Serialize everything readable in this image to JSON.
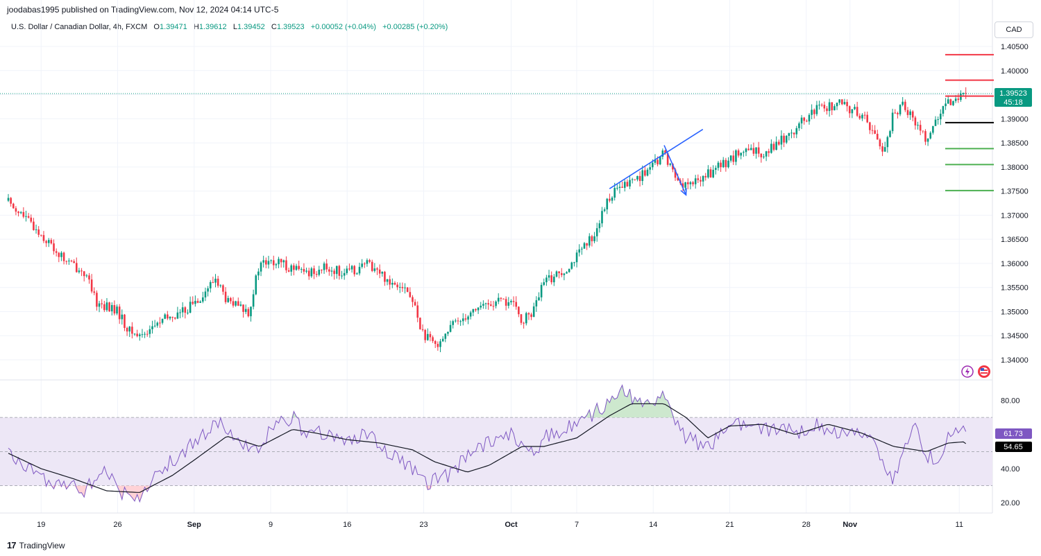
{
  "header": {
    "publisher_line": "joodabas1995 published on TradingView.com, Nov 12, 2024 04:14 UTC-5",
    "symbol": "U.S. Dollar / Canadian Dollar, 4h, FXCM",
    "open_label": "O",
    "open": "1.39471",
    "high_label": "H",
    "high": "1.39612",
    "low_label": "L",
    "low": "1.39452",
    "close_label": "C",
    "close": "1.39523",
    "change": "+0.00052 (+0.04%)",
    "change2": "+0.00285 (+0.20%)",
    "currency_button": "CAD"
  },
  "price_badge": {
    "price": "1.39523",
    "countdown": "45:18"
  },
  "rsi_badges": {
    "rsi": "61.73",
    "rsi_ma": "54.65"
  },
  "footer": {
    "brand": "TradingView",
    "logo_text": "17"
  },
  "colors": {
    "up": "#089981",
    "down": "#f23645",
    "rsi": "#7e57c2",
    "rsi_band": "#ede7f6",
    "trendline": "#2962ff",
    "resistance": "#f23645",
    "support": "#4caf50",
    "pivot": "#000000"
  },
  "chart_data": [
    {
      "type": "candlestick",
      "title": "U.S. Dollar / Canadian Dollar, 4h, FXCM",
      "timeframe": "4h",
      "ylim": [
        1.337,
        1.4075
      ],
      "y_ticks": [
        "1.40500",
        "1.40000",
        "1.39500",
        "1.39000",
        "1.38500",
        "1.38000",
        "1.37500",
        "1.37000",
        "1.36500",
        "1.36000",
        "1.35500",
        "1.35000",
        "1.34500",
        "1.34000"
      ],
      "x_ticks": [
        "19",
        "26",
        "Sep",
        "9",
        "16",
        "23",
        "Oct",
        "7",
        "14",
        "21",
        "28",
        "Nov",
        "11"
      ],
      "close_path": [
        [
          "Aug 16",
          1.373
        ],
        [
          "Aug 19",
          1.366
        ],
        [
          "Aug 21",
          1.361
        ],
        [
          "Aug 23",
          1.358
        ],
        [
          "Aug 24",
          1.352
        ],
        [
          "Aug 26",
          1.35
        ],
        [
          "Aug 27",
          1.346
        ],
        [
          "Aug 28",
          1.345
        ],
        [
          "Aug 30",
          1.348
        ],
        [
          "Sep 1",
          1.35
        ],
        [
          "Sep 3",
          1.354
        ],
        [
          "Sep 4",
          1.357
        ],
        [
          "Sep 5",
          1.352
        ],
        [
          "Sep 7",
          1.35
        ],
        [
          "Sep 8",
          1.36
        ],
        [
          "Sep 10",
          1.36
        ],
        [
          "Sep 12",
          1.358
        ],
        [
          "Sep 14",
          1.359
        ],
        [
          "Sep 16",
          1.358
        ],
        [
          "Sep 18",
          1.36
        ],
        [
          "Sep 20",
          1.356
        ],
        [
          "Sep 21",
          1.356
        ],
        [
          "Sep 22",
          1.352
        ],
        [
          "Sep 23",
          1.345
        ],
        [
          "Sep 24",
          1.343
        ],
        [
          "Sep 26",
          1.348
        ],
        [
          "Sep 28",
          1.351
        ],
        [
          "Sep 30",
          1.352
        ],
        [
          "Oct 1",
          1.352
        ],
        [
          "Oct 2",
          1.348
        ],
        [
          "Oct 3",
          1.35
        ],
        [
          "Oct 4",
          1.356
        ],
        [
          "Oct 6",
          1.359
        ],
        [
          "Oct 8",
          1.364
        ],
        [
          "Oct 9",
          1.368
        ],
        [
          "Oct 10",
          1.374
        ],
        [
          "Oct 12",
          1.377
        ],
        [
          "Oct 14",
          1.38
        ],
        [
          "Oct 15",
          1.383
        ],
        [
          "Oct 16",
          1.378
        ],
        [
          "Oct 17",
          1.376
        ],
        [
          "Oct 18",
          1.377
        ],
        [
          "Oct 20",
          1.38
        ],
        [
          "Oct 22",
          1.383
        ],
        [
          "Oct 24",
          1.383
        ],
        [
          "Oct 26",
          1.386
        ],
        [
          "Oct 27",
          1.388
        ],
        [
          "Oct 29",
          1.392
        ],
        [
          "Oct 31",
          1.393
        ],
        [
          "Nov 1",
          1.392
        ],
        [
          "Nov 2",
          1.391
        ],
        [
          "Nov 3",
          1.388
        ],
        [
          "Nov 4",
          1.383
        ],
        [
          "Nov 5",
          1.391
        ],
        [
          "Nov 6",
          1.393
        ],
        [
          "Nov 7",
          1.389
        ],
        [
          "Nov 8",
          1.386
        ],
        [
          "Nov 9",
          1.39
        ],
        [
          "Nov 10",
          1.393
        ],
        [
          "Nov 11",
          1.3952
        ]
      ],
      "levels": [
        {
          "price": 1.4033,
          "role": "resistance"
        },
        {
          "price": 1.398,
          "role": "resistance"
        },
        {
          "price": 1.3947,
          "role": "resistance"
        },
        {
          "price": 1.3892,
          "role": "pivot"
        },
        {
          "price": 1.3838,
          "role": "support"
        },
        {
          "price": 1.3805,
          "role": "support"
        },
        {
          "price": 1.3751,
          "role": "support"
        }
      ],
      "trendline": [
        [
          "Oct 10",
          1.3755
        ],
        [
          "Oct 16",
          1.3878
        ]
      ],
      "arrow": [
        [
          "Oct 15",
          1.3845
        ],
        [
          "Oct 17",
          1.3742
        ]
      ],
      "last_price": 1.39523
    },
    {
      "type": "line",
      "subtype": "rsi",
      "ylim": [
        14,
        92
      ],
      "y_ticks": [
        "80.00",
        "40.00",
        "20.00"
      ],
      "bands": {
        "upper": 70,
        "middle": 50,
        "lower": 30
      },
      "rsi_path": [
        [
          "Aug 16",
          50
        ],
        [
          "Aug 17",
          43
        ],
        [
          "Aug 19",
          35
        ],
        [
          "Aug 21",
          31
        ],
        [
          "Aug 23",
          27
        ],
        [
          "Aug 25",
          41
        ],
        [
          "Aug 26",
          28
        ],
        [
          "Aug 27",
          23
        ],
        [
          "Aug 28",
          24
        ],
        [
          "Aug 30",
          39
        ],
        [
          "Sep 1",
          50
        ],
        [
          "Sep 3",
          60
        ],
        [
          "Sep 4",
          68
        ],
        [
          "Sep 6",
          57
        ],
        [
          "Sep 8",
          50
        ],
        [
          "Sep 9",
          63
        ],
        [
          "Sep 11",
          70
        ],
        [
          "Sep 12",
          62
        ],
        [
          "Sep 14",
          60
        ],
        [
          "Sep 16",
          57
        ],
        [
          "Sep 18",
          60
        ],
        [
          "Sep 20",
          48
        ],
        [
          "Sep 21",
          45
        ],
        [
          "Sep 22",
          40
        ],
        [
          "Sep 23",
          31
        ],
        [
          "Sep 25",
          35
        ],
        [
          "Sep 27",
          47
        ],
        [
          "Sep 29",
          55
        ],
        [
          "Oct 1",
          61
        ],
        [
          "Oct 2",
          52
        ],
        [
          "Oct 3",
          48
        ],
        [
          "Oct 4",
          58
        ],
        [
          "Oct 6",
          64
        ],
        [
          "Oct 8",
          70
        ],
        [
          "Oct 10",
          79
        ],
        [
          "Oct 11",
          86
        ],
        [
          "Oct 13",
          78
        ],
        [
          "Oct 14",
          80
        ],
        [
          "Oct 15",
          84
        ],
        [
          "Oct 16",
          68
        ],
        [
          "Oct 17",
          58
        ],
        [
          "Oct 19",
          53
        ],
        [
          "Oct 20",
          59
        ],
        [
          "Oct 21",
          70
        ],
        [
          "Oct 22",
          65
        ],
        [
          "Oct 24",
          62
        ],
        [
          "Oct 26",
          65
        ],
        [
          "Oct 27",
          60
        ],
        [
          "Oct 29",
          66
        ],
        [
          "Oct 30",
          63
        ],
        [
          "Nov 1",
          61
        ],
        [
          "Nov 3",
          58
        ],
        [
          "Nov 4",
          44
        ],
        [
          "Nov 5",
          32
        ],
        [
          "Nov 6",
          55
        ],
        [
          "Nov 7",
          64
        ],
        [
          "Nov 8",
          48
        ],
        [
          "Nov 9",
          44
        ],
        [
          "Nov 10",
          58
        ],
        [
          "Nov 11",
          63
        ],
        [
          "Nov 12",
          62
        ]
      ],
      "ma_path": [
        [
          "Aug 16",
          49
        ],
        [
          "Aug 19",
          40
        ],
        [
          "Aug 22",
          34
        ],
        [
          "Aug 25",
          27
        ],
        [
          "Aug 28",
          26
        ],
        [
          "Aug 31",
          36
        ],
        [
          "Sep 2",
          45
        ],
        [
          "Sep 5",
          59
        ],
        [
          "Sep 8",
          53
        ],
        [
          "Sep 11",
          63
        ],
        [
          "Sep 13",
          61
        ],
        [
          "Sep 16",
          57
        ],
        [
          "Sep 19",
          55
        ],
        [
          "Sep 22",
          51
        ],
        [
          "Sep 24",
          44
        ],
        [
          "Sep 27",
          38
        ],
        [
          "Sep 29",
          42
        ],
        [
          "Oct 2",
          53
        ],
        [
          "Oct 4",
          53
        ],
        [
          "Oct 7",
          58
        ],
        [
          "Oct 10",
          71
        ],
        [
          "Oct 12",
          78
        ],
        [
          "Oct 15",
          78
        ],
        [
          "Oct 17",
          70
        ],
        [
          "Oct 19",
          58
        ],
        [
          "Oct 21",
          65
        ],
        [
          "Oct 24",
          66
        ],
        [
          "Oct 27",
          60
        ],
        [
          "Oct 30",
          66
        ],
        [
          "Nov 2",
          61
        ],
        [
          "Nov 5",
          53
        ],
        [
          "Nov 8",
          50
        ],
        [
          "Nov 10",
          55
        ],
        [
          "Nov 12",
          56
        ]
      ],
      "last_rsi": 61.73,
      "last_ma": 54.65
    }
  ]
}
